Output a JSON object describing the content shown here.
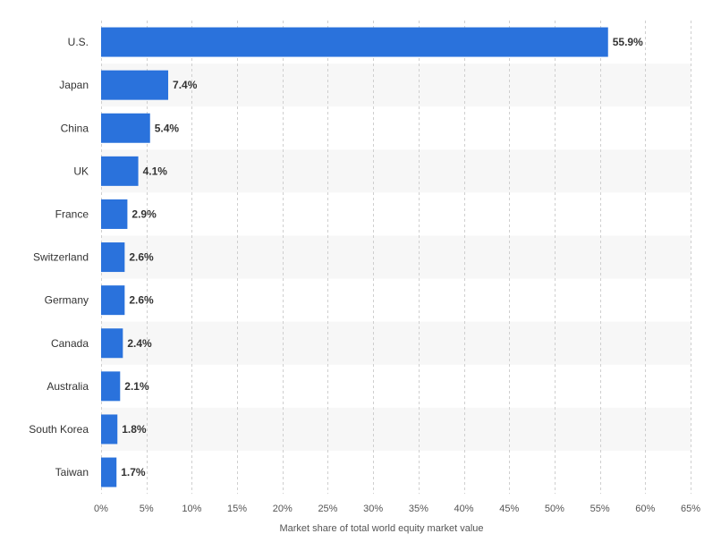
{
  "chart_data": {
    "type": "bar",
    "orientation": "horizontal",
    "categories": [
      "U.S.",
      "Japan",
      "China",
      "UK",
      "France",
      "Switzerland",
      "Germany",
      "Canada",
      "Australia",
      "South Korea",
      "Taiwan"
    ],
    "values": [
      55.9,
      7.4,
      5.4,
      4.1,
      2.9,
      2.6,
      2.6,
      2.4,
      2.1,
      1.8,
      1.7
    ],
    "value_labels": [
      "55.9%",
      "7.4%",
      "5.4%",
      "4.1%",
      "2.9%",
      "2.6%",
      "2.6%",
      "2.4%",
      "2.1%",
      "1.8%",
      "1.7%"
    ],
    "x_ticks": [
      0,
      5,
      10,
      15,
      20,
      25,
      30,
      35,
      40,
      45,
      50,
      55,
      60,
      65
    ],
    "x_tick_labels": [
      "0%",
      "5%",
      "10%",
      "15%",
      "20%",
      "25%",
      "30%",
      "35%",
      "40%",
      "45%",
      "50%",
      "55%",
      "60%",
      "65%"
    ],
    "xlim": [
      0,
      65
    ],
    "xlabel": "Market share of total world equity market value",
    "ylabel": "",
    "title": "",
    "grid": true,
    "bar_color": "#2a72dc",
    "band_color": "#f7f7f7"
  }
}
